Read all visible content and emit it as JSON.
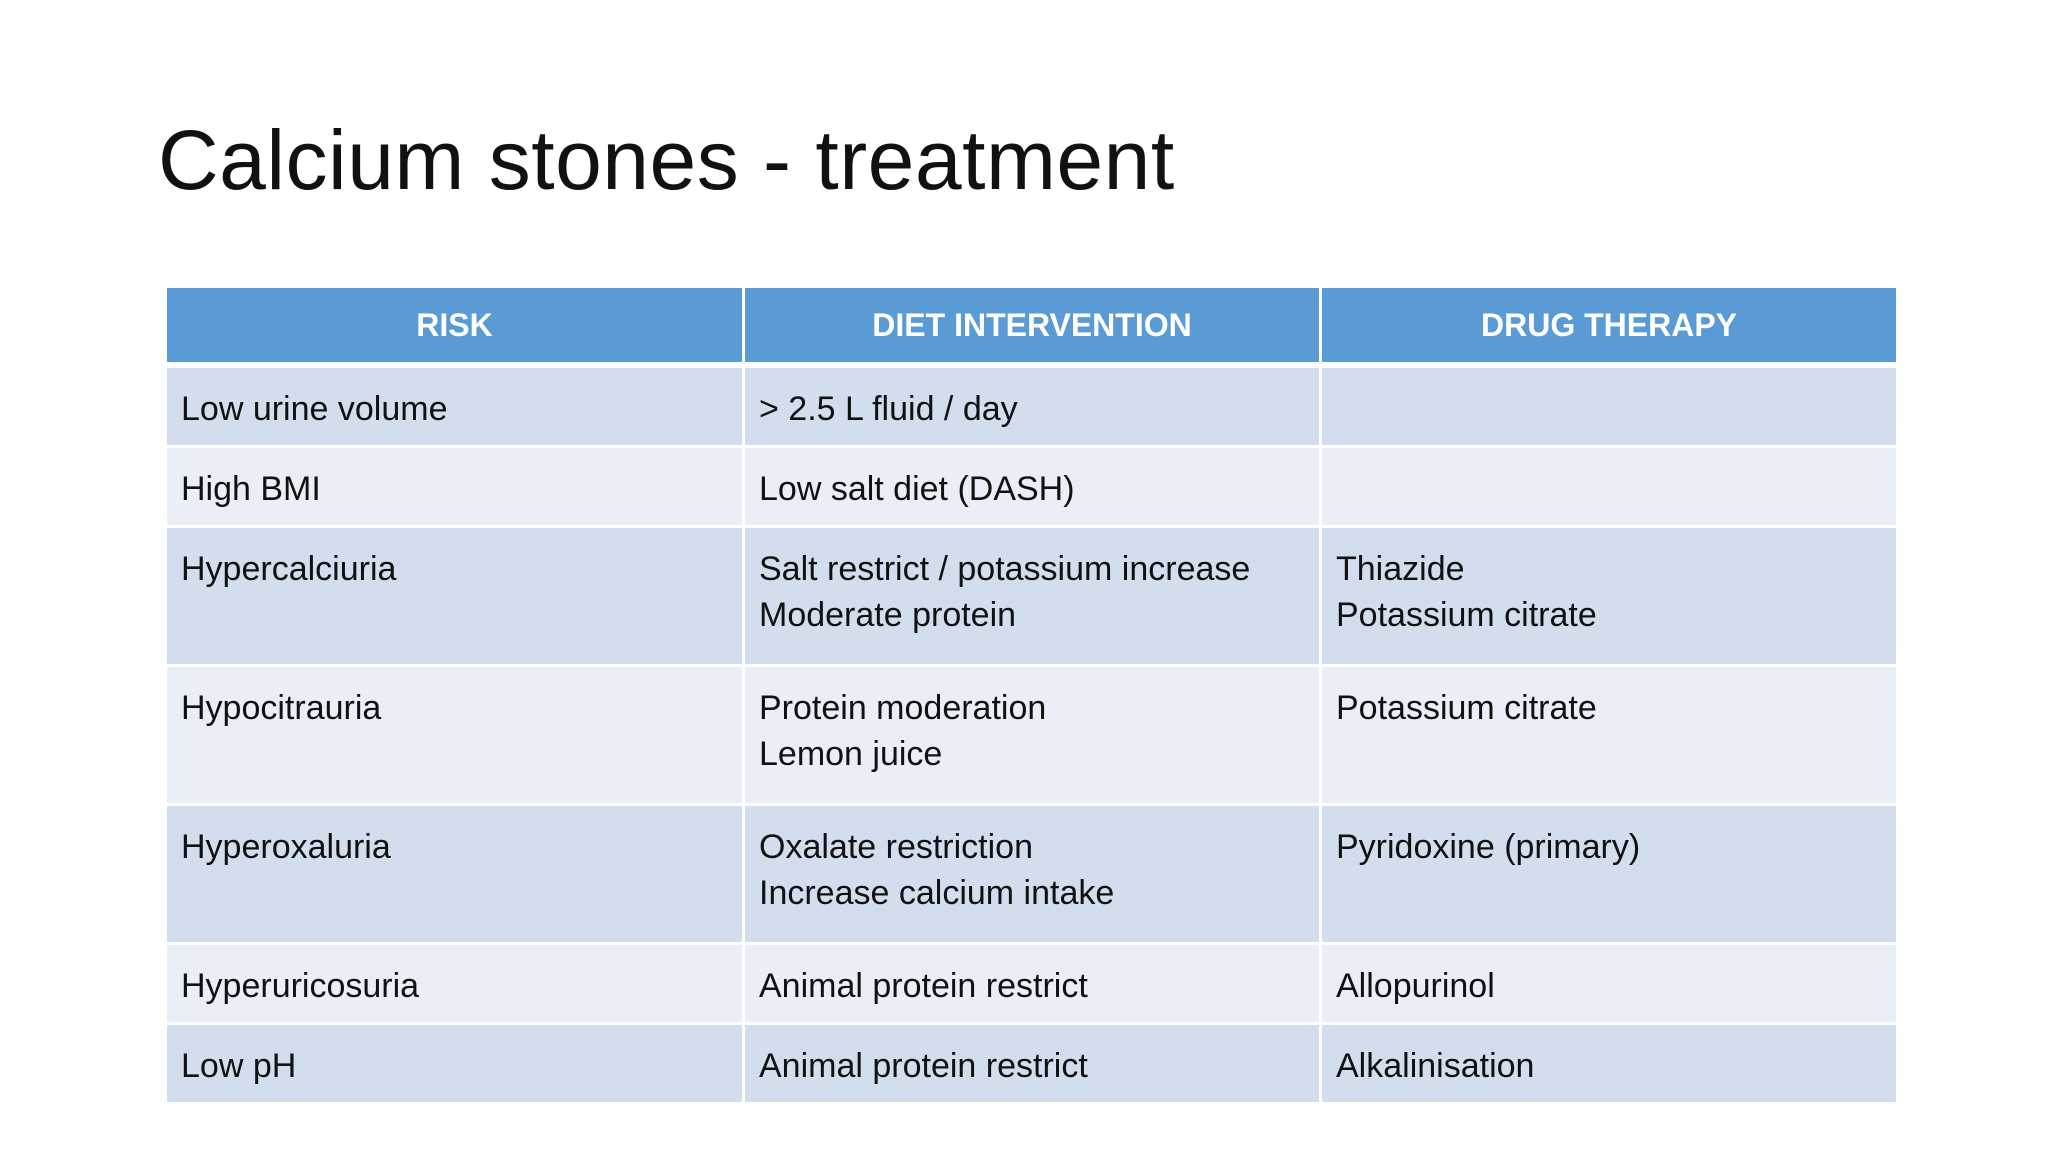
{
  "title": "Calcium stones - treatment",
  "table": {
    "headers": [
      "RISK",
      "DIET INTERVENTION",
      "DRUG THERAPY"
    ],
    "rows": [
      {
        "risk": [
          "Low urine volume"
        ],
        "diet": [
          "> 2.5 L fluid / day"
        ],
        "drug": []
      },
      {
        "risk": [
          "High BMI"
        ],
        "diet": [
          "Low salt diet (DASH)"
        ],
        "drug": []
      },
      {
        "risk": [
          "Hypercalciuria"
        ],
        "diet": [
          "Salt restrict / potassium increase",
          "Moderate protein"
        ],
        "drug": [
          "Thiazide",
          "Potassium citrate"
        ]
      },
      {
        "risk": [
          "Hypocitrauria"
        ],
        "diet": [
          "Protein moderation",
          "Lemon juice"
        ],
        "drug": [
          "Potassium citrate"
        ]
      },
      {
        "risk": [
          "Hyperoxaluria"
        ],
        "diet": [
          "Oxalate restriction",
          "Increase calcium intake"
        ],
        "drug": [
          "Pyridoxine (primary)"
        ]
      },
      {
        "risk": [
          "Hyperuricosuria"
        ],
        "diet": [
          "Animal protein restrict"
        ],
        "drug": [
          "Allopurinol"
        ]
      },
      {
        "risk": [
          "Low pH"
        ],
        "diet": [
          "Animal protein restrict"
        ],
        "drug": [
          "Alkalinisation"
        ]
      }
    ]
  },
  "colors": {
    "header_bg": "#5b9bd5",
    "row_dark": "#d2deee",
    "row_light": "#eaeff7"
  }
}
